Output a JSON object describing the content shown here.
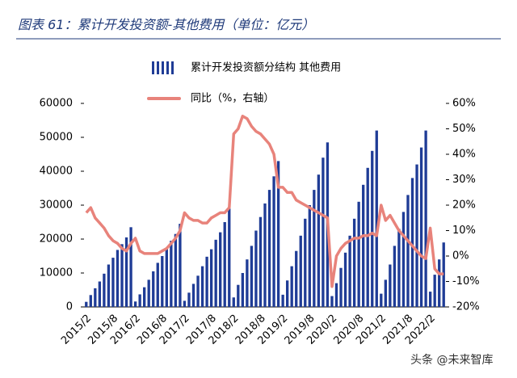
{
  "chart_data": {
    "type": "bar_line",
    "title": "图表 61：累计开发投资额-其他费用（单位：亿元）",
    "watermark": "头条 @未来智库",
    "categories": [
      "2015/2",
      null,
      null,
      null,
      null,
      null,
      "2015/8",
      null,
      null,
      null,
      null,
      "2016/2",
      null,
      null,
      null,
      null,
      null,
      "2016/8",
      null,
      null,
      null,
      null,
      "2017/2",
      null,
      null,
      null,
      null,
      null,
      "2017/8",
      null,
      null,
      null,
      null,
      "2018/2",
      null,
      null,
      null,
      null,
      null,
      "2018/8",
      null,
      null,
      null,
      null,
      "2019/2",
      null,
      null,
      null,
      null,
      null,
      "2019/8",
      null,
      null,
      null,
      null,
      "2020/2",
      null,
      null,
      null,
      null,
      null,
      "2020/8",
      null,
      null,
      null,
      null,
      "2021/2",
      null,
      null,
      null,
      null,
      null,
      "2021/8",
      null,
      null,
      null,
      null,
      "2022/2",
      null,
      null,
      null
    ],
    "series": [
      {
        "name": "累计开发投资额分结构 其他费用",
        "color": "#1f3c96",
        "type": "bar",
        "axis": "y",
        "values": [
          1500,
          3500,
          5500,
          7500,
          9800,
          12500,
          14500,
          16800,
          18500,
          20500,
          23500,
          1600,
          3700,
          5800,
          8000,
          10500,
          13000,
          15000,
          17500,
          19500,
          21500,
          24500,
          1800,
          4200,
          6800,
          9200,
          12000,
          14800,
          17000,
          19800,
          22000,
          25000,
          29000,
          2800,
          6500,
          10000,
          14000,
          18000,
          22500,
          26500,
          30500,
          34500,
          38500,
          43000,
          3600,
          7800,
          12000,
          16500,
          21000,
          26000,
          30000,
          34500,
          39000,
          44000,
          48500,
          3200,
          7000,
          11500,
          16000,
          21000,
          26000,
          31000,
          36000,
          41000,
          46000,
          52000,
          3900,
          8000,
          12500,
          18000,
          23000,
          28000,
          33000,
          38000,
          42000,
          47000,
          52000,
          4500,
          9500,
          14000,
          19000
        ]
      },
      {
        "name": "同比（%，右轴）",
        "color": "#e8837b",
        "type": "line",
        "axis": "y2",
        "values": [
          17,
          19,
          15,
          13,
          11,
          8,
          6,
          5,
          3,
          2,
          5,
          7,
          2,
          1,
          1,
          1,
          1,
          2,
          3,
          5,
          7,
          10,
          17,
          15,
          14,
          14,
          13,
          13,
          15,
          16,
          17,
          17,
          19,
          48,
          50,
          55,
          54,
          51,
          49,
          48,
          46,
          44,
          40,
          27,
          27,
          25,
          25,
          22,
          21,
          20,
          19,
          18,
          17,
          16,
          15,
          -12,
          0,
          3,
          5,
          6,
          7,
          7,
          8,
          8,
          9,
          8,
          20,
          14,
          16,
          13,
          10,
          8,
          6,
          4,
          2,
          0,
          -1,
          11,
          -5,
          -7,
          -7
        ]
      }
    ],
    "ylim": [
      0,
      60000
    ],
    "yticks": [
      0,
      10000,
      20000,
      30000,
      40000,
      50000,
      60000
    ],
    "y2lim": [
      -20,
      60
    ],
    "y2ticks": [
      {
        "value": -20,
        "label": "-20%"
      },
      {
        "value": -10,
        "label": "-10%"
      },
      {
        "value": 0,
        "label": "0%"
      },
      {
        "value": 10,
        "label": "10%"
      },
      {
        "value": 20,
        "label": "20%"
      },
      {
        "value": 30,
        "label": "30%"
      },
      {
        "value": 40,
        "label": "40%"
      },
      {
        "value": 50,
        "label": "50%"
      },
      {
        "value": 60,
        "label": "60%"
      }
    ],
    "legend": "top"
  }
}
